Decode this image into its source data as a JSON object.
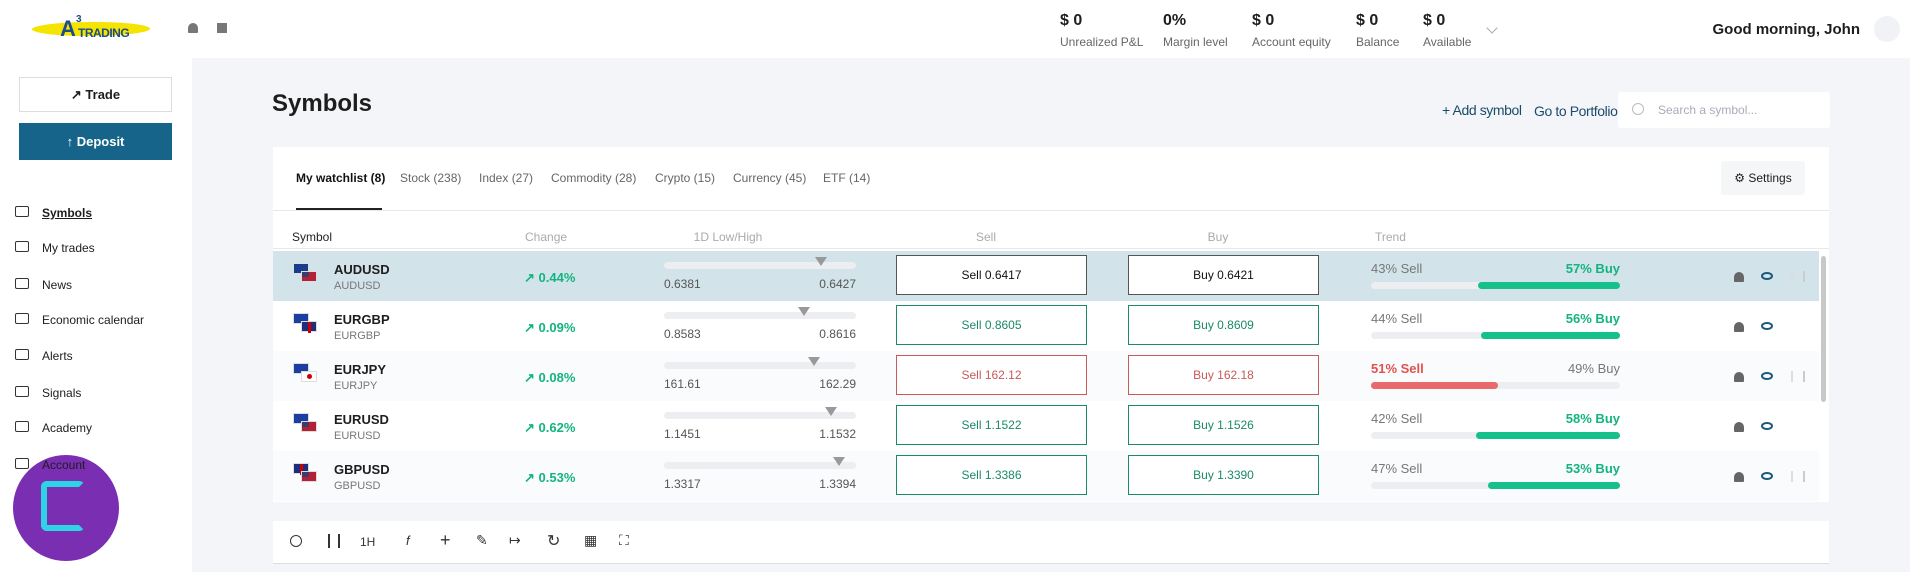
{
  "header": {
    "logo_mark": "A",
    "logo_sup": "3",
    "logo": "TRADING",
    "stats": [
      {
        "value": "$ 0",
        "label": "Unrealized P&L"
      },
      {
        "value": "0%",
        "label": "Margin level"
      },
      {
        "value": "$ 0",
        "label": "Account equity"
      },
      {
        "value": "$ 0",
        "label": "Balance"
      },
      {
        "value": "$ 0",
        "label": "Available"
      }
    ],
    "greeting": "Good morning, John"
  },
  "sidebar": {
    "trade": "Trade",
    "deposit": "Deposit",
    "nav": [
      "Symbols",
      "My trades",
      "News",
      "Economic calendar",
      "Alerts",
      "Signals",
      "Academy",
      "Account"
    ]
  },
  "main": {
    "title": "Symbols",
    "add_symbol": "Add symbol",
    "portfolio": "Go to Portfolio",
    "search": "Search a symbol...",
    "tabs": [
      "My watchlist (8)",
      "Stock (238)",
      "Index (27)",
      "Commodity (28)",
      "Crypto (15)",
      "Currency (45)",
      "ETF (14)"
    ],
    "settings": "Settings",
    "columns": [
      "Symbol",
      "Change",
      "1D Low/High",
      "Sell",
      "Buy",
      "Trend"
    ],
    "rows": [
      {
        "symbol": "AUDUSD",
        "name": "AUDUSD",
        "change": "0.44%",
        "low": "0.6381",
        "high": "0.6427",
        "sell": "Sell 0.6417",
        "buy": "Buy 0.6421",
        "sell_trend": "43% Sell",
        "buy_trend": "57% Buy",
        "trend_pct": 57,
        "trend_side": "buy"
      },
      {
        "symbol": "EURGBP",
        "name": "EURGBP",
        "change": "0.09%",
        "low": "0.8583",
        "high": "0.8616",
        "sell": "Sell 0.8605",
        "buy": "Buy 0.8609",
        "sell_trend": "44% Sell",
        "buy_trend": "56% Buy",
        "trend_pct": 56,
        "trend_side": "buy"
      },
      {
        "symbol": "EURJPY",
        "name": "EURJPY",
        "change": "0.08%",
        "low": "161.61",
        "high": "162.29",
        "sell": "Sell 162.12",
        "buy": "Buy 162.18",
        "sell_trend": "51% Sell",
        "buy_trend": "49% Buy",
        "trend_pct": 51,
        "trend_side": "sell"
      },
      {
        "symbol": "EURUSD",
        "name": "EURUSD",
        "change": "0.62%",
        "low": "1.1451",
        "high": "1.1532",
        "sell": "Sell 1.1522",
        "buy": "Buy 1.1526",
        "sell_trend": "42% Sell",
        "buy_trend": "58% Buy",
        "trend_pct": 58,
        "trend_side": "buy"
      },
      {
        "symbol": "GBPUSD",
        "name": "GBPUSD",
        "change": "0.53%",
        "low": "1.3317",
        "high": "1.3394",
        "sell": "Sell 1.3386",
        "buy": "Buy 1.3390",
        "sell_trend": "47% Sell",
        "buy_trend": "53% Buy",
        "trend_pct": 53,
        "trend_side": "buy"
      }
    ],
    "toolbar": {
      "interval": "1H"
    }
  }
}
